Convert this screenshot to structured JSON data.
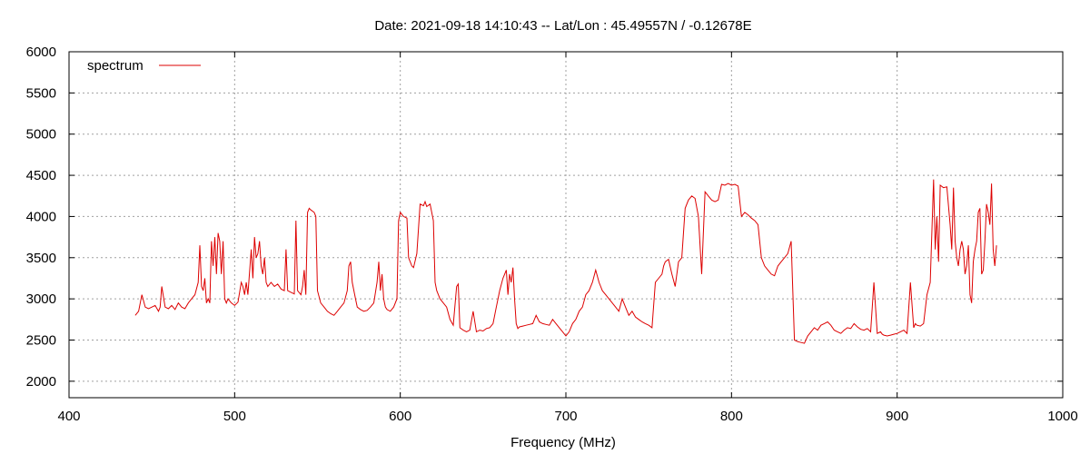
{
  "chart_data": {
    "type": "line",
    "title": "Date: 2021-09-18 14:10:43  --  Lat/Lon : 45.49557N / -0.12678E",
    "xlabel": "Frequency (MHz)",
    "ylabel": "",
    "xlim": [
      400,
      1000
    ],
    "ylim": [
      1800,
      6000
    ],
    "x_ticks": [
      400,
      500,
      600,
      700,
      800,
      900,
      1000
    ],
    "y_ticks": [
      2000,
      2500,
      3000,
      3500,
      4000,
      4500,
      5000,
      5500,
      6000
    ],
    "grid": true,
    "legend_position": "top-left",
    "colors": {
      "series": "#dd0000",
      "grid": "#a0a0a0",
      "frame": "#000000"
    },
    "series": [
      {
        "name": "spectrum",
        "x": [
          440,
          442,
          443,
          444,
          446,
          448,
          450,
          452,
          454,
          455,
          456,
          458,
          460,
          462,
          464,
          466,
          468,
          470,
          472,
          474,
          476,
          478,
          479,
          480,
          481,
          482,
          483,
          484,
          485,
          486,
          487,
          488,
          489,
          490,
          491,
          492,
          493,
          494,
          495,
          496,
          498,
          500,
          502,
          504,
          505,
          506,
          507,
          508,
          510,
          511,
          512,
          513,
          514,
          515,
          516,
          517,
          518,
          519,
          520,
          522,
          524,
          526,
          528,
          530,
          531,
          532,
          534,
          536,
          537,
          538,
          540,
          541,
          542,
          543,
          544,
          545,
          546,
          548,
          549,
          550,
          552,
          554,
          556,
          558,
          560,
          562,
          564,
          566,
          568,
          569,
          570,
          571,
          572,
          573,
          574,
          576,
          578,
          580,
          582,
          584,
          586,
          587,
          588,
          589,
          590,
          591,
          592,
          594,
          596,
          598,
          599,
          600,
          602,
          604,
          605,
          606,
          607,
          608,
          610,
          612,
          614,
          615,
          616,
          618,
          620,
          621,
          622,
          623,
          624,
          626,
          628,
          630,
          632,
          634,
          635,
          636,
          638,
          640,
          642,
          644,
          646,
          648,
          650,
          652,
          654,
          656,
          658,
          660,
          662,
          664,
          665,
          666,
          667,
          668,
          669,
          670,
          671,
          672,
          674,
          676,
          678,
          680,
          682,
          684,
          686,
          688,
          690,
          692,
          694,
          696,
          698,
          700,
          702,
          704,
          706,
          708,
          710,
          712,
          714,
          716,
          718,
          720,
          721,
          722,
          724,
          726,
          728,
          730,
          732,
          734,
          736,
          738,
          740,
          742,
          744,
          746,
          748,
          750,
          752,
          754,
          756,
          758,
          759,
          760,
          762,
          764,
          766,
          768,
          770,
          772,
          774,
          776,
          778,
          780,
          782,
          784,
          786,
          788,
          790,
          792,
          794,
          796,
          798,
          800,
          802,
          804,
          806,
          808,
          810,
          812,
          814,
          816,
          818,
          820,
          822,
          824,
          826,
          828,
          830,
          832,
          834,
          836,
          838,
          840,
          842,
          844,
          846,
          848,
          850,
          852,
          854,
          856,
          858,
          860,
          862,
          864,
          866,
          868,
          870,
          872,
          874,
          876,
          878,
          880,
          882,
          884,
          886,
          888,
          890,
          891,
          892,
          894,
          896,
          898,
          900,
          902,
          904,
          906,
          908,
          910,
          911,
          912,
          914,
          916,
          918,
          920,
          922,
          923,
          924,
          925,
          926,
          928,
          930,
          932,
          933,
          934,
          935,
          936,
          937,
          938,
          939,
          940,
          941,
          942,
          943,
          944,
          945,
          946,
          947,
          948,
          949,
          950,
          951,
          952,
          953,
          954,
          955,
          956,
          957,
          958,
          959,
          960
        ],
        "values": [
          2800,
          2850,
          2950,
          3050,
          2900,
          2880,
          2900,
          2920,
          2850,
          2900,
          3150,
          2900,
          2880,
          2920,
          2870,
          2950,
          2900,
          2880,
          2950,
          3000,
          3050,
          3200,
          3650,
          3150,
          3100,
          3250,
          2950,
          3000,
          2950,
          3700,
          3400,
          3750,
          3300,
          3800,
          3700,
          3300,
          3700,
          3000,
          2950,
          3000,
          2950,
          2920,
          2960,
          3200,
          3150,
          3050,
          3200,
          3050,
          3600,
          3250,
          3750,
          3500,
          3550,
          3700,
          3400,
          3300,
          3500,
          3200,
          3150,
          3200,
          3150,
          3180,
          3120,
          3100,
          3600,
          3100,
          3080,
          3060,
          3950,
          3100,
          3050,
          3150,
          3350,
          3050,
          4050,
          4100,
          4080,
          4050,
          4000,
          3100,
          2950,
          2900,
          2850,
          2820,
          2800,
          2850,
          2900,
          2950,
          3100,
          3400,
          3450,
          3200,
          3100,
          3000,
          2900,
          2870,
          2850,
          2860,
          2900,
          2950,
          3200,
          3450,
          3100,
          3300,
          3000,
          2900,
          2870,
          2850,
          2900,
          3000,
          3950,
          4050,
          4000,
          3980,
          3500,
          3450,
          3400,
          3380,
          3550,
          4150,
          4130,
          4180,
          4120,
          4150,
          3950,
          3200,
          3100,
          3050,
          3000,
          2950,
          2900,
          2750,
          2680,
          3150,
          3180,
          2650,
          2620,
          2600,
          2620,
          2850,
          2600,
          2620,
          2610,
          2640,
          2650,
          2700,
          2900,
          3100,
          3250,
          3350,
          3050,
          3300,
          3200,
          3380,
          3000,
          2700,
          2640,
          2660,
          2670,
          2680,
          2690,
          2700,
          2800,
          2720,
          2700,
          2690,
          2680,
          2750,
          2700,
          2650,
          2600,
          2550,
          2600,
          2700,
          2750,
          2850,
          2900,
          3050,
          3100,
          3200,
          3350,
          3200,
          3150,
          3100,
          3050,
          3000,
          2950,
          2900,
          2850,
          3000,
          2900,
          2800,
          2850,
          2780,
          2750,
          2720,
          2700,
          2680,
          2650,
          3200,
          3250,
          3300,
          3400,
          3450,
          3480,
          3300,
          3150,
          3450,
          3500,
          4100,
          4200,
          4250,
          4220,
          4000,
          3300,
          4300,
          4250,
          4200,
          4180,
          4200,
          4390,
          4380,
          4400,
          4380,
          4390,
          4370,
          4000,
          4050,
          4020,
          3980,
          3950,
          3900,
          3500,
          3400,
          3350,
          3300,
          3280,
          3400,
          3450,
          3500,
          3550,
          3700,
          2500,
          2480,
          2470,
          2460,
          2550,
          2600,
          2650,
          2620,
          2680,
          2700,
          2720,
          2680,
          2620,
          2600,
          2580,
          2620,
          2650,
          2640,
          2700,
          2660,
          2630,
          2620,
          2640,
          2600,
          3200,
          2580,
          2600,
          2570,
          2560,
          2550,
          2560,
          2570,
          2580,
          2600,
          2620,
          2580,
          3200,
          2650,
          2700,
          2680,
          2670,
          2700,
          3050,
          3200,
          4450,
          3600,
          4000,
          3450,
          4380,
          4350,
          4360,
          3900,
          3600,
          4350,
          3700,
          3500,
          3400,
          3600,
          3700,
          3600,
          3300,
          3400,
          3650,
          3050,
          2950,
          3450,
          3600,
          3700,
          4050,
          4100,
          3300,
          3350,
          3700,
          4150,
          4050,
          3900,
          4400,
          3600,
          3400,
          3650
        ]
      }
    ]
  }
}
